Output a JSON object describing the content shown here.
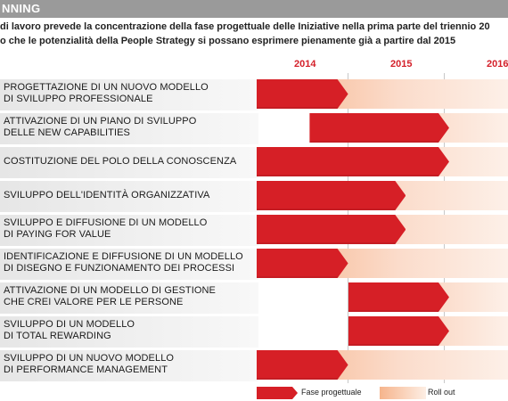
{
  "header": {
    "title": "NNING"
  },
  "intro": {
    "line1": "di lavoro prevede la concentrazione della fase progettuale delle Iniziative nella prima parte del triennio 20",
    "line2": "o che le potenzialità della People Strategy si possano esprimere pienamente già a partire dal 2015"
  },
  "years": [
    "2014",
    "2015",
    "2016"
  ],
  "colors": {
    "design": "#d61f26",
    "rollout": "#f6b48c",
    "year_text": "#d4202a"
  },
  "rows": [
    {
      "lines": [
        "PROGETTAZIONE DI UN NUOVO MODELLO",
        "DI SVILUPPO PROFESSIONALE"
      ],
      "design_start": 2014.0,
      "design_end": 2014.95,
      "rollout_end": 2016.7
    },
    {
      "lines": [
        "ATTIVAZIONE DI UN PIANO DI SVILUPPO",
        "DELLE NEW CAPABILITIES"
      ],
      "design_start": 2014.55,
      "design_end": 2016.0,
      "rollout_end": 2016.7
    },
    {
      "lines": [
        "COSTITUZIONE DEL POLO DELLA CONOSCENZA"
      ],
      "design_start": 2014.0,
      "design_end": 2016.0,
      "rollout_end": 2016.7
    },
    {
      "lines": [
        "SVILUPPO DELL'IDENTITÀ ORGANIZZATIVA"
      ],
      "design_start": 2014.0,
      "design_end": 2015.55,
      "rollout_end": 2016.7
    },
    {
      "lines": [
        "SVILUPPO E DIFFUSIONE DI UN MODELLO",
        "DI PAYING FOR VALUE"
      ],
      "design_start": 2014.0,
      "design_end": 2015.55,
      "rollout_end": 2016.7
    },
    {
      "lines": [
        "IDENTIFICAZIONE E DIFFUSIONE DI UN MODELLO",
        "DI DISEGNO E FUNZIONAMENTO DEI PROCESSI"
      ],
      "design_start": 2014.0,
      "design_end": 2014.95,
      "rollout_end": 2016.7
    },
    {
      "lines": [
        "ATTIVAZIONE DI UN MODELLO DI GESTIONE",
        "CHE CREI VALORE PER LE PERSONE"
      ],
      "design_start": 2014.95,
      "design_end": 2016.0,
      "rollout_end": 2016.7
    },
    {
      "lines": [
        "SVILUPPO DI UN MODELLO",
        "DI TOTAL REWARDING"
      ],
      "design_start": 2014.95,
      "design_end": 2016.0,
      "rollout_end": 2016.7
    },
    {
      "lines": [
        "SVILUPPO DI UN NUOVO MODELLO",
        "DI PERFORMANCE MANAGEMENT"
      ],
      "design_start": 2014.0,
      "design_end": 2014.95,
      "rollout_end": 2016.7
    }
  ],
  "legend": {
    "design_label": "Fase progettuale",
    "rollout_label": "Roll out"
  }
}
